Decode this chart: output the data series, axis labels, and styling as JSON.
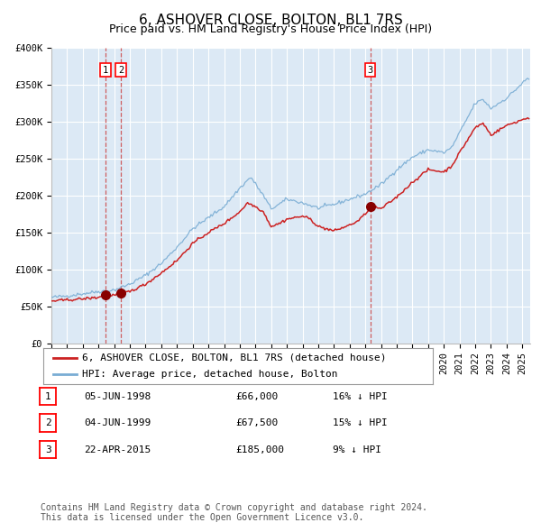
{
  "title": "6, ASHOVER CLOSE, BOLTON, BL1 7RS",
  "subtitle": "Price paid vs. HM Land Registry's House Price Index (HPI)",
  "ylim": [
    0,
    400000
  ],
  "yticks": [
    0,
    50000,
    100000,
    150000,
    200000,
    250000,
    300000,
    350000,
    400000
  ],
  "ytick_labels": [
    "£0",
    "£50K",
    "£100K",
    "£150K",
    "£200K",
    "£250K",
    "£300K",
    "£350K",
    "£400K"
  ],
  "xlim_start": 1995.0,
  "xlim_end": 2025.5,
  "bg_color": "#dce9f5",
  "grid_color": "#ffffff",
  "hpi_line_color": "#7aadd4",
  "price_line_color": "#cc2222",
  "marker_color": "#880000",
  "vline_color": "#cc4444",
  "sale_dates_decimal": [
    1998.44,
    1999.43,
    2015.31
  ],
  "sale_prices": [
    66000,
    67500,
    185000
  ],
  "sale_labels": [
    "1",
    "2",
    "3"
  ],
  "legend_label_price": "6, ASHOVER CLOSE, BOLTON, BL1 7RS (detached house)",
  "legend_label_hpi": "HPI: Average price, detached house, Bolton",
  "table_rows": [
    [
      "1",
      "05-JUN-1998",
      "£66,000",
      "16% ↓ HPI"
    ],
    [
      "2",
      "04-JUN-1999",
      "£67,500",
      "15% ↓ HPI"
    ],
    [
      "3",
      "22-APR-2015",
      "£185,000",
      "9% ↓ HPI"
    ]
  ],
  "footnote_line1": "Contains HM Land Registry data © Crown copyright and database right 2024.",
  "footnote_line2": "This data is licensed under the Open Government Licence v3.0.",
  "title_fontsize": 11,
  "subtitle_fontsize": 9,
  "tick_fontsize": 7.5,
  "legend_fontsize": 8,
  "table_fontsize": 8,
  "footnote_fontsize": 7
}
